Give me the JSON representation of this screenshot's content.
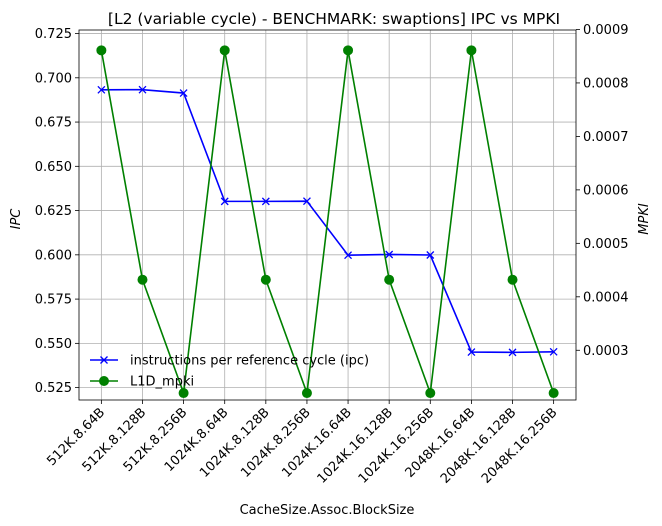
{
  "chart_data": {
    "type": "line",
    "title": "[L2 (variable cycle) - BENCHMARK: swaptions]  IPC vs MPKI",
    "xlabel": "CacheSize.Assoc.BlockSize",
    "ylabel_left": "IPC",
    "ylabel_right": "MPKI",
    "categories": [
      "512K.8.64B",
      "512K.8.128B",
      "512K.8.256B",
      "1024K.8.64B",
      "1024K.8.128B",
      "1024K.8.256B",
      "1024K.16.64B",
      "1024K.16.128B",
      "1024K.16.256B",
      "2048K.16.64B",
      "2048K.16.128B",
      "2048K.16.256B"
    ],
    "ylim_left": [
      0.518,
      0.727
    ],
    "yticks_left": [
      0.525,
      0.55,
      0.575,
      0.6,
      0.625,
      0.65,
      0.675,
      0.7,
      0.725
    ],
    "ytick_labels_left": [
      "0.525",
      "0.550",
      "0.575",
      "0.600",
      "0.625",
      "0.650",
      "0.675",
      "0.700",
      "0.725"
    ],
    "ylim_right": [
      0.000207,
      0.000899
    ],
    "yticks_right": [
      0.0003,
      0.0004,
      0.0005,
      0.0006,
      0.0007,
      0.0008,
      0.0009
    ],
    "ytick_labels_right": [
      "0.0003",
      "0.0004",
      "0.0005",
      "0.0006",
      "0.0007",
      "0.0008",
      "0.0009"
    ],
    "grid": true,
    "legend_position": "lower-left",
    "series": [
      {
        "name": "instructions per reference cycle (ipc)",
        "axis": "left",
        "color": "#0000ff",
        "marker": "x",
        "values": [
          0.6932,
          0.6933,
          0.6914,
          0.6302,
          0.6302,
          0.6303,
          0.5998,
          0.6002,
          0.5999,
          0.5451,
          0.5449,
          0.5452
        ]
      },
      {
        "name": "L1D_mpki",
        "axis": "right",
        "color": "#008000",
        "marker": "o",
        "values": [
          0.000861,
          0.000432,
          0.00022,
          0.000861,
          0.000432,
          0.00022,
          0.000861,
          0.000432,
          0.00022,
          0.000861,
          0.000432,
          0.00022
        ]
      }
    ]
  }
}
